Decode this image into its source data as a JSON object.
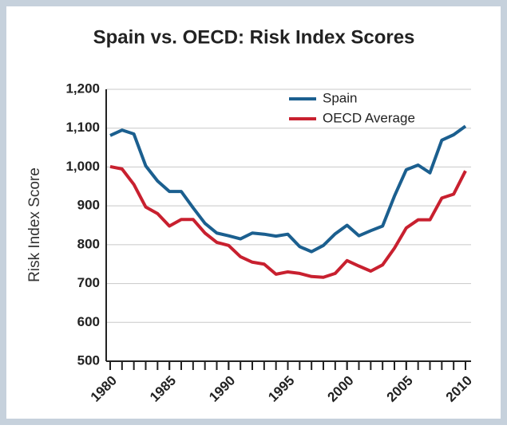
{
  "chart_data": {
    "type": "line",
    "title": "Spain vs. OECD: Risk Index Scores",
    "ylabel": "Risk Index Score",
    "x": [
      1980,
      1981,
      1982,
      1983,
      1984,
      1985,
      1986,
      1987,
      1988,
      1989,
      1990,
      1991,
      1992,
      1993,
      1994,
      1995,
      1996,
      1997,
      1998,
      1999,
      2000,
      2001,
      2002,
      2003,
      2004,
      2005,
      2006,
      2007,
      2008,
      2009,
      2010
    ],
    "series": [
      {
        "name": "Spain",
        "color": "#1b5f8f",
        "values": [
          1081,
          1095,
          1085,
          1003,
          964,
          937,
          937,
          895,
          855,
          830,
          823,
          815,
          830,
          827,
          822,
          827,
          795,
          782,
          798,
          828,
          850,
          823,
          836,
          848,
          925,
          993,
          1005,
          985,
          1069,
          1083,
          1105
        ]
      },
      {
        "name": "OECD Average",
        "color": "#c8202f",
        "values": [
          1001,
          995,
          955,
          897,
          880,
          848,
          865,
          865,
          830,
          806,
          798,
          769,
          755,
          750,
          724,
          730,
          726,
          718,
          716,
          726,
          759,
          745,
          732,
          748,
          791,
          843,
          864,
          864,
          920,
          930,
          990
        ]
      }
    ],
    "xlim": [
      1980,
      2010
    ],
    "xticks": [
      1980,
      1985,
      1990,
      1995,
      2000,
      2005,
      2010
    ],
    "ylim": [
      500,
      1200
    ],
    "yticks": [
      500,
      600,
      700,
      800,
      900,
      {
        "value": 1000,
        "label": "1,000"
      },
      {
        "value": 1100,
        "label": "1,100"
      },
      {
        "value": 1200,
        "label": "1,200"
      }
    ],
    "grid": true,
    "legend": "top-right"
  }
}
